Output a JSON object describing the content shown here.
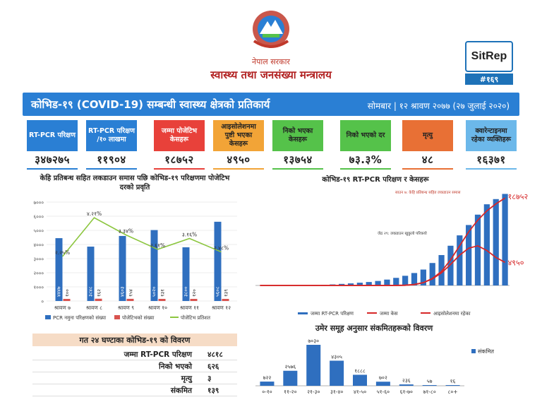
{
  "header": {
    "govt": "नेपाल सरकार",
    "ministry": "स्वास्थ्य तथा जनसंख्या मन्त्रालय",
    "sitrep_label": "SitRep",
    "sitrep_number": "#१६९"
  },
  "title_bar": {
    "title": "कोभिड-१९ (COVID-19) सम्बन्धी स्वास्थ्य क्षेत्रको प्रतिकार्य",
    "date": "सोमबार | १२ श्रावण २०७७ (२७ जुलाई २०२०)"
  },
  "cards": [
    {
      "label": "RT-PCR परिक्षण",
      "value": "३४७२७५",
      "bg": "#2a7fd4",
      "fg": "#ffffff",
      "valbg": "#2a7fd4"
    },
    {
      "label": "RT-PCR परिक्षण /१० लाखमा",
      "value": "११९०४",
      "bg": "#2a7fd4",
      "fg": "#ffffff",
      "valbg": "#2a7fd4"
    },
    {
      "label": "जम्मा पोजेटिभ केसहरू",
      "value": "१८७५२",
      "bg": "#e8413a",
      "fg": "#ffffff",
      "valbg": "#e8413a"
    },
    {
      "label": "आइसोलेशनमा पुष्टी भएका केसहरू",
      "value": "४९५०",
      "bg": "#f2a437",
      "fg": "#222222",
      "valbg": "#f2a437"
    },
    {
      "label": "निको भएका केसहरू",
      "value": "१३७५४",
      "bg": "#55c24a",
      "fg": "#222222",
      "valbg": "#55c24a"
    },
    {
      "label": "निको भएको दर",
      "value": "७३.३%",
      "bg": "#55c24a",
      "fg": "#222222",
      "valbg": "#55c24a"
    },
    {
      "label": "मृत्यु",
      "value": "४८",
      "bg": "#e87035",
      "fg": "#222222",
      "valbg": "#e87035"
    },
    {
      "label": "क्वारेन्टाइनमा रहेका व्यक्तिहरू",
      "value": "१६३७१",
      "bg": "#6cb8ea",
      "fg": "#222222",
      "valbg": "#6cb8ea"
    }
  ],
  "chart_data": [
    {
      "type": "bar",
      "title": "केहि प्रतिबन्ध सहित लकडाउन समास पछि कोभिड-१९ परिक्षणमा पोजेटिभ दरको प्रवृति",
      "categories": [
        "श्रावण ७",
        "श्रावण ८",
        "श्रावण ९",
        "श्रावण १०",
        "श्रावण ११",
        "श्रावण १२"
      ],
      "ylim": [
        0,
        7000
      ],
      "yticks": [
        "०",
        "१०००",
        "२०००",
        "३०००",
        "४०००",
        "५०००",
        "६०००",
        "७०००"
      ],
      "series": [
        {
          "name": "PCR नमुना परिक्षणको संख्या",
          "type": "bar",
          "color": "#2f6fbf",
          "values": [
            4447,
            3848,
            4603,
            5020,
            3800,
            5608
          ],
          "labels": [
            "४४४७",
            "३८४८",
            "४६०३",
            "५०२०",
            "३८००",
            "५६०८"
          ]
        },
        {
          "name": "पोजेटिभको संख्या",
          "type": "bar",
          "color": "#d9534f",
          "values": [
            100,
            162,
            154,
            131,
            120,
            139
          ],
          "labels": [
            "१००",
            "१६२",
            "१५४",
            "१३१",
            "१२०",
            "१३९"
          ]
        },
        {
          "name": "पोजेटिभ प्रतिशत",
          "type": "line",
          "color": "#8cc63f",
          "values": [
            2.25,
            4.21,
            3.34,
            2.61,
            3.16,
            2.48
          ],
          "labels": [
            "२.२५%",
            "४.२१%",
            "३.३४%",
            "२.६१%",
            "३.१६%",
            "२.४८%"
          ]
        }
      ]
    },
    {
      "type": "bar",
      "title": "कोभिड-१९ RT-PCR परिक्षण र केसहरू",
      "series": [
        {
          "name": "जम्मा RT-PCR परिक्षण",
          "type": "bar",
          "color": "#2f6fbf",
          "values": [
            0,
            0,
            1,
            5,
            20,
            50,
            120,
            200,
            300,
            450,
            600,
            800,
            1000,
            1300,
            1700,
            2200,
            2800,
            3600,
            4600,
            6500,
            8800,
            11500,
            14500,
            17500,
            20500,
            23500,
            25000,
            26500
          ]
        },
        {
          "name": "जम्मा केस",
          "type": "line",
          "color": "#d62728",
          "values": [
            0,
            0,
            0,
            0,
            0,
            0,
            0,
            0,
            0,
            0,
            0,
            0,
            0,
            0,
            0,
            10,
            50,
            200,
            600,
            1500,
            3000,
            5500,
            8500,
            11500,
            14000,
            16000,
            17500,
            18752
          ]
        },
        {
          "name": "आइसोलेशनमा रहेका",
          "type": "line",
          "color": "#d62728",
          "values": [
            0,
            0,
            0,
            0,
            0,
            0,
            0,
            0,
            0,
            0,
            0,
            0,
            0,
            0,
            0,
            10,
            50,
            200,
            600,
            1400,
            2700,
            4500,
            6500,
            8000,
            8500,
            7500,
            6000,
            4950
          ]
        }
      ],
      "annotations": {
        "total_cases_label": "१८७५२",
        "isolation_label": "४९५०",
        "note_lockdown_eased": "साउन ७: केहि प्रतिबन्ध सहित लकडाउन समास",
        "note_lockdown_business": "जेठ २९: लकडाउन खुकुलो परिकयो"
      }
    },
    {
      "type": "bar",
      "title": "उमेर समूह अनुसार संकमितहरूको विवरण",
      "categories": [
        "०-१०",
        "११-२०",
        "२१-३०",
        "३१-४०",
        "४१-५०",
        "५१-६०",
        "६१-७०",
        "७१-८०",
        "८०+"
      ],
      "series": [
        {
          "name": "संकमित",
          "color": "#2f6fbf",
          "values": [
            722,
            2576,
            7030,
            4305,
            1888,
            702,
            236,
            57,
            16
          ],
          "labels": [
            "७२२",
            "२५७६",
            "७०३०",
            "४३०५",
            "१८८८",
            "७०२",
            "२३६",
            "५७",
            "१६"
          ]
        }
      ]
    }
  ],
  "table": {
    "title": "गत २४ घण्टाका कोभिड-१९ को विवरण",
    "rows": [
      {
        "key": "जम्मा RT-PCR परिक्षण",
        "value": "४८१८"
      },
      {
        "key": "निको भएको",
        "value": "६२६"
      },
      {
        "key": "मृत्यु",
        "value": "३"
      },
      {
        "key": "संकमित",
        "value": "१३९"
      }
    ]
  }
}
